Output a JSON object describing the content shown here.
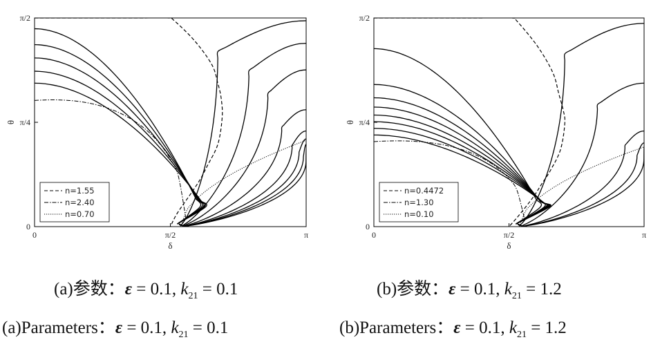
{
  "chart_data": [
    {
      "type": "line",
      "panel": "a",
      "xlabel": "δ",
      "ylabel": "θ",
      "xlim": [
        0,
        3.1416
      ],
      "ylim": [
        0,
        1.5708
      ],
      "xticks": [
        "0",
        "π/2",
        "π"
      ],
      "yticks": [
        "0",
        "π/4",
        "π/2"
      ],
      "grid": false,
      "legend_position": "bottom-left",
      "legend": [
        {
          "label": "n=1.55",
          "style": "dashed"
        },
        {
          "label": "n=2.40",
          "style": "dashdot"
        },
        {
          "label": "n=0.70",
          "style": "dotted"
        }
      ],
      "left_family_theta_at_0": [
        1.49,
        1.37,
        1.27,
        1.17,
        1.08
      ],
      "right_family_theta_at_pi": [
        1.55,
        1.38,
        1.18,
        0.88,
        0.72,
        0.66,
        0.62,
        0.58
      ],
      "right_family_min_delta": [
        2.12,
        2.48,
        2.7,
        2.86,
        2.98,
        3.06,
        3.11,
        3.14
      ],
      "separatrix": {
        "x": [
          0,
          0.6,
          1.2,
          1.55,
          1.6,
          1.85,
          2.05,
          2.12,
          2.16,
          2.17,
          2.12,
          2.0,
          1.92,
          1.82,
          1.65,
          1.571
        ],
        "y": [
          1.5708,
          1.5708,
          1.5708,
          1.5708,
          1.56,
          1.4,
          1.22,
          1.08,
          0.96,
          0.82,
          0.62,
          0.46,
          0.36,
          0.26,
          0.1,
          0
        ]
      },
      "boundary_n240": {
        "theta_at_0": 0.95
      },
      "boundary_n070": {
        "theta_at_pi": 0.65
      },
      "title": "",
      "xlabel_note": ""
    },
    {
      "type": "line",
      "panel": "b",
      "xlabel": "δ",
      "ylabel": "θ",
      "xlim": [
        0,
        3.1416
      ],
      "ylim": [
        0,
        1.5708
      ],
      "xticks": [
        "0",
        "π/2",
        "π"
      ],
      "yticks": [
        "0",
        "π/4",
        "π/2"
      ],
      "grid": false,
      "legend_position": "bottom-left",
      "legend": [
        {
          "label": "n=0.4472",
          "style": "dashed"
        },
        {
          "label": "n=1.30",
          "style": "dashdot"
        },
        {
          "label": "n=0.10",
          "style": "dotted"
        }
      ],
      "left_family_theta_at_0": [
        1.34,
        1.07,
        0.97,
        0.9,
        0.84,
        0.79,
        0.74,
        0.69
      ],
      "right_family_theta_at_pi": [
        1.53,
        1.08,
        0.72,
        0.63,
        0.6
      ],
      "right_family_min_delta": [
        2.22,
        2.6,
        2.92,
        3.06,
        3.14
      ],
      "separatrix": {
        "x": [
          0,
          0.6,
          1.2,
          1.61,
          1.66,
          1.9,
          2.08,
          2.15,
          2.2,
          2.22,
          2.17,
          2.05,
          1.95,
          1.85,
          1.68,
          1.571
        ],
        "y": [
          1.5708,
          1.5708,
          1.5708,
          1.5708,
          1.55,
          1.36,
          1.16,
          1.0,
          0.88,
          0.78,
          0.58,
          0.42,
          0.32,
          0.22,
          0.08,
          0
        ]
      },
      "boundary_n130": {
        "theta_at_0": 0.64
      },
      "boundary_n010": {
        "theta_at_pi": 0.6
      },
      "title": "",
      "xlabel_note": ""
    }
  ],
  "captions": {
    "a_cn": {
      "prefix": "(a)参数：",
      "eps": "ε",
      "mid1": " = 0.1, ",
      "k": "k",
      "sub": "21",
      "mid2": " = 0.1"
    },
    "b_cn": {
      "prefix": "(b)参数：",
      "eps": "ε",
      "mid1": " = 0.1, ",
      "k": "k",
      "sub": "21",
      "mid2": " = 1.2"
    },
    "a_en": {
      "prefix": "(a)Parameters：",
      "eps": "ε",
      "mid1": " = 0.1, ",
      "k": "k",
      "sub": "21",
      "mid2": " = 0.1"
    },
    "b_en": {
      "prefix": "(b)Parameters：",
      "eps": "ε",
      "mid1": " = 0.1, ",
      "k": "k",
      "sub": "21",
      "mid2": " = 1.2"
    }
  }
}
